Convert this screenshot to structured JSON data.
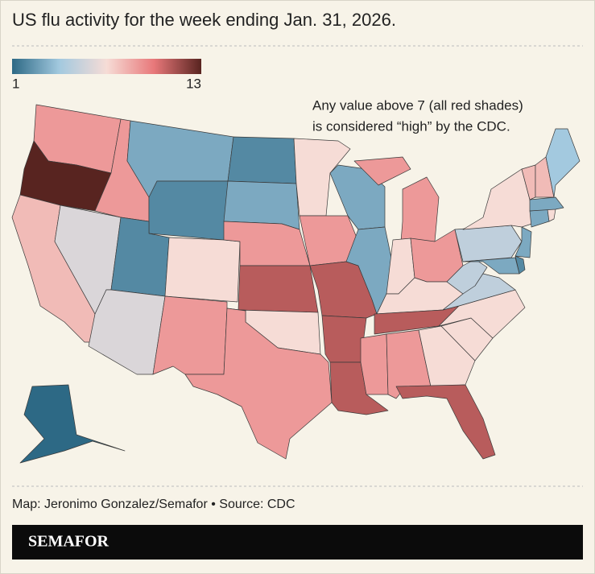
{
  "chart_data": {
    "type": "choropleth",
    "title": "US flu activity for the week ending Jan. 31, 2026.",
    "annotation": [
      "Any value above 7 (all red shades)",
      "is considered “high” by the CDC."
    ],
    "range": [
      1,
      13
    ],
    "colorscale": [
      "#2d6985",
      "#a3c9df",
      "#f6dcd6",
      "#e8787a",
      "#582420"
    ],
    "values": [
      9,
      13,
      8,
      6,
      9,
      3,
      2,
      2,
      6,
      7,
      9,
      2,
      3,
      9,
      11,
      7,
      9,
      7,
      9,
      11,
      11,
      11,
      3,
      3,
      9,
      7,
      9,
      7,
      11,
      9,
      9,
      7,
      11,
      7,
      7,
      5,
      5,
      5,
      7,
      3,
      2,
      3,
      3,
      7,
      3,
      8,
      8,
      4,
      1
    ],
    "credit": "Map: Jeronimo Gonzalez/Semafor • Source: CDC",
    "brand": "SEMAFOR"
  }
}
